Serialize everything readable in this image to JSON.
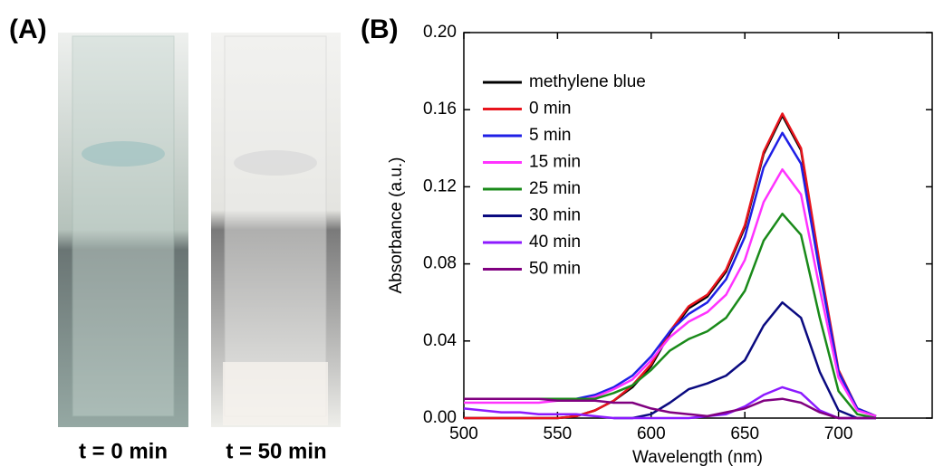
{
  "panel_a": {
    "label": "(A)",
    "captions": [
      "t = 0 min",
      "t = 50 min"
    ]
  },
  "chart_data": {
    "type": "line",
    "panel_label": "(B)",
    "x_label": "Wavelength (nm)",
    "y_label": "Absorbance (a.u.)",
    "x": [
      500,
      510,
      520,
      530,
      540,
      550,
      560,
      570,
      580,
      590,
      600,
      610,
      620,
      630,
      640,
      650,
      660,
      670,
      680,
      690,
      700,
      710,
      720
    ],
    "series": [
      {
        "name": "methylene blue",
        "color": "#000000",
        "values": [
          0,
          0,
          0,
          0,
          0,
          0,
          0.001,
          0.004,
          0.009,
          0.016,
          0.027,
          0.044,
          0.057,
          0.063,
          0.076,
          0.099,
          0.137,
          0.157,
          0.139,
          0.079,
          0.024,
          0.005,
          0.001
        ]
      },
      {
        "name": "0 min",
        "color": "#e8141c",
        "values": [
          0,
          0,
          0,
          0,
          0,
          0,
          0.001,
          0.004,
          0.009,
          0.017,
          0.028,
          0.045,
          0.058,
          0.064,
          0.077,
          0.1,
          0.138,
          0.158,
          0.14,
          0.08,
          0.025,
          0.005,
          0.001
        ]
      },
      {
        "name": "5 min",
        "color": "#1f1fe6",
        "values": [
          0.01,
          0.01,
          0.01,
          0.01,
          0.01,
          0.01,
          0.01,
          0.012,
          0.016,
          0.022,
          0.032,
          0.045,
          0.054,
          0.06,
          0.072,
          0.094,
          0.13,
          0.148,
          0.132,
          0.076,
          0.024,
          0.005,
          0.001
        ]
      },
      {
        "name": "15 min",
        "color": "#ff33ff",
        "values": [
          0.008,
          0.008,
          0.008,
          0.008,
          0.008,
          0.009,
          0.009,
          0.011,
          0.015,
          0.02,
          0.03,
          0.042,
          0.05,
          0.055,
          0.064,
          0.082,
          0.112,
          0.129,
          0.116,
          0.067,
          0.021,
          0.004,
          0.001
        ]
      },
      {
        "name": "25 min",
        "color": "#1a8a1a",
        "values": [
          0.01,
          0.01,
          0.01,
          0.01,
          0.01,
          0.01,
          0.01,
          0.01,
          0.013,
          0.017,
          0.025,
          0.035,
          0.041,
          0.045,
          0.052,
          0.066,
          0.092,
          0.106,
          0.095,
          0.052,
          0.014,
          0.002,
          0
        ]
      },
      {
        "name": "30 min",
        "color": "#0a0a80",
        "values": [
          null,
          null,
          null,
          null,
          null,
          null,
          null,
          null,
          0,
          0,
          0.002,
          0.008,
          0.015,
          0.018,
          0.022,
          0.03,
          0.048,
          0.06,
          0.052,
          0.024,
          0.004,
          0,
          0
        ]
      },
      {
        "name": "40 min",
        "color": "#8c1aff",
        "values": [
          0.005,
          0.004,
          0.003,
          0.003,
          0.002,
          0.002,
          0.002,
          0.001,
          0,
          0,
          0,
          0,
          0,
          0.001,
          0.002,
          0.006,
          0.012,
          0.016,
          0.013,
          0.004,
          0,
          0,
          0
        ]
      },
      {
        "name": "50 min",
        "color": "#800080",
        "values": [
          0.01,
          0.01,
          0.01,
          0.01,
          0.01,
          0.009,
          0.009,
          0.009,
          0.008,
          0.008,
          0.005,
          0.003,
          0.002,
          0.001,
          0.003,
          0.005,
          0.009,
          0.01,
          0.008,
          0.003,
          0,
          0,
          0
        ]
      }
    ],
    "xlim": [
      500,
      750
    ],
    "ylim": [
      0,
      0.2
    ],
    "xticks": [
      500,
      550,
      600,
      650,
      700
    ],
    "yticks": [
      {
        "value": 0,
        "label": "0.00"
      },
      {
        "value": 0.04,
        "label": "0.04"
      },
      {
        "value": 0.08,
        "label": "0.08"
      },
      {
        "value": 0.12,
        "label": "0.12"
      },
      {
        "value": 0.16,
        "label": "0.16"
      },
      {
        "value": 0.2,
        "label": "0.20"
      }
    ],
    "legend": "upper-left"
  }
}
